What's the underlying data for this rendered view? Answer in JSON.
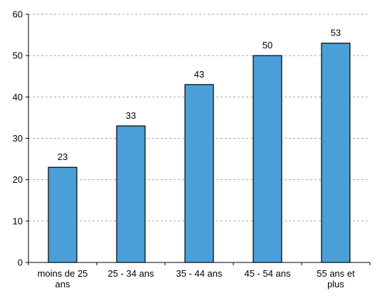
{
  "chart_data": {
    "type": "bar",
    "categories": [
      [
        "moins de 25",
        "ans"
      ],
      [
        "25 - 34 ans"
      ],
      [
        "35 - 44 ans"
      ],
      [
        "45 - 54 ans"
      ],
      [
        "55 ans et",
        "plus"
      ]
    ],
    "values": [
      23,
      33,
      43,
      50,
      53
    ],
    "data_labels": [
      "23",
      "33",
      "43",
      "50",
      "53"
    ],
    "ylim": [
      0,
      60
    ],
    "yticks": [
      0,
      10,
      20,
      30,
      40,
      50,
      60
    ],
    "grid": true,
    "legend": "none",
    "bar_color": "#4a9fd8"
  }
}
